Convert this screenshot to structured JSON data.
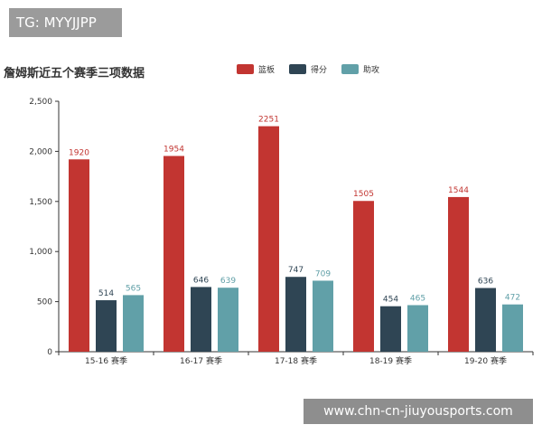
{
  "tg_badge": "TG: MYYJJPP",
  "watermark": "www.chn-cn-jiuyousports.com",
  "chart_data": {
    "type": "bar",
    "title": "詹姆斯近五个赛季三项数据",
    "categories": [
      "15-16 赛季",
      "16-17 赛季",
      "17-18 赛季",
      "18-19 赛季",
      "19-20 赛季"
    ],
    "series": [
      {
        "name": "篮板",
        "color": "#c23531",
        "values": [
          1920,
          1954,
          2251,
          1505,
          1544
        ]
      },
      {
        "name": "得分",
        "color": "#2f4554",
        "values": [
          514,
          646,
          747,
          454,
          636
        ]
      },
      {
        "name": "助攻",
        "color": "#61a0a8",
        "values": [
          565,
          639,
          709,
          465,
          472
        ]
      }
    ],
    "ylim": [
      0,
      2500
    ],
    "yticks": [
      "0",
      "500",
      "1,000",
      "1,500",
      "2,000",
      "2,500"
    ],
    "ytick_values": [
      0,
      500,
      1000,
      1500,
      2000,
      2500
    ],
    "legend_position": "top"
  }
}
